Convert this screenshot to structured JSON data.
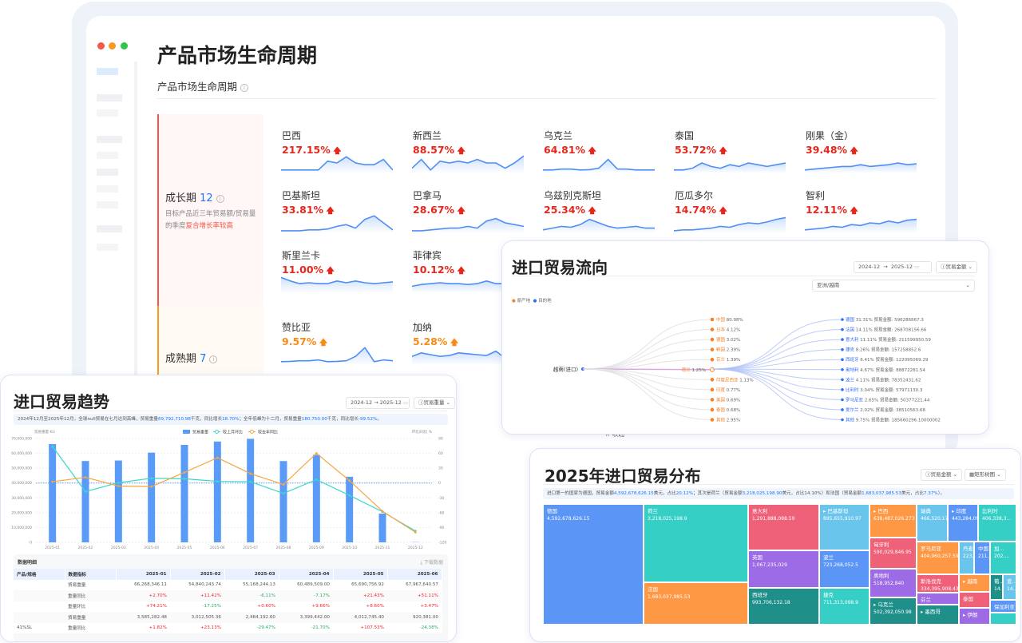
{
  "main": {
    "title": "产品市场生命周期",
    "subtitle": "产品市场生命周期",
    "collapse_label": "收起",
    "growth": {
      "label": "成长期",
      "count": "12",
      "desc_prefix": "目标产品近三年贸易额/贸易量的季度",
      "desc_highlight": "复合增长率较高",
      "color": "#f5574b",
      "items": [
        {
          "name": "巴西",
          "pct": "217.15%"
        },
        {
          "name": "新西兰",
          "pct": "88.57%"
        },
        {
          "name": "乌克兰",
          "pct": "64.81%"
        },
        {
          "name": "泰国",
          "pct": "53.72%"
        },
        {
          "name": "刚果（金）",
          "pct": "39.48%"
        },
        {
          "name": "巴基斯坦",
          "pct": "33.81%"
        },
        {
          "name": "巴拿马",
          "pct": "28.67%"
        },
        {
          "name": "乌兹别克斯坦",
          "pct": "25.34%"
        },
        {
          "name": "厄瓜多尔",
          "pct": "14.74%"
        },
        {
          "name": "智利",
          "pct": "12.11%"
        },
        {
          "name": "斯里兰卡",
          "pct": "11.00%"
        },
        {
          "name": "菲律宾",
          "pct": "10.12%"
        }
      ]
    },
    "mature": {
      "label": "成熟期",
      "count": "7",
      "color": "#fa9a1e",
      "items": [
        {
          "name": "赞比亚",
          "pct": "9.57%"
        },
        {
          "name": "加纳",
          "pct": "5.28%"
        }
      ]
    }
  },
  "trend": {
    "title": "进口贸易趋势",
    "date_start": "2024-12",
    "date_end": "2025-12",
    "metric": "贸易重量",
    "summary": [
      "2024年12月至2025年12月，全球null贸易在七月达到高峰，贸易重量",
      "69,792,710.98",
      "千克，同比增长",
      "18.70%",
      "；全年低峰为十二月，贸易重量",
      "180,750.00",
      "千克，同比增长",
      "-99.52%",
      "。"
    ],
    "table_title": "数据明细",
    "download_label": "下载数据",
    "table": {
      "headers": [
        "产品/规格",
        "数据指标",
        "2025-01",
        "2025-02",
        "2025-03",
        "2025-04",
        "2025-05",
        "2025-06"
      ],
      "rows": [
        [
          "",
          "贸易重量",
          "66,268,346.11",
          "54,840,243.74",
          "55,168,244.13",
          "60,489,509.00",
          "65,690,756.92",
          "67,967,640.57"
        ],
        [
          "",
          "重量同比",
          "+2.70%",
          "+11.42%",
          "-6.11%",
          "-7.17%",
          "+21.43%",
          "+51.11%"
        ],
        [
          "",
          "重量环比",
          "+74.21%",
          "-17.25%",
          "+0.60%",
          "+9.66%",
          "+8.60%",
          "+3.47%"
        ],
        [
          "",
          "贸易重量",
          "3,585,282.48",
          "3,012,505.36",
          "2,484,192.60",
          "3,399,442.00",
          "4,012,745.40",
          "920,381.00"
        ],
        [
          "41%SL",
          "重量同比",
          "+1.82%",
          "+23.13%",
          "-29.47%",
          "-21.70%",
          "+107.53%",
          "-24.38%"
        ]
      ]
    }
  },
  "chart_data": {
    "type": "bar",
    "xlabel": "",
    "ylabel": "贸易重量 KG",
    "y2label": "环比/同比 %",
    "categories": [
      "2025-01",
      "2025-02",
      "2025-03",
      "2025-04",
      "2025-05",
      "2025-06",
      "2025-07",
      "2025-08",
      "2025-09",
      "2025-10",
      "2025-11",
      "2025-12"
    ],
    "ylim": [
      0,
      70000000
    ],
    "yticks": [
      "0",
      "10,000,000",
      "20,000,000",
      "30,000,000",
      "40,000,000",
      "50,000,000",
      "60,000,000",
      "70,000,000"
    ],
    "y2lim": [
      -120,
      90
    ],
    "y2ticks": [
      "-120",
      "-90",
      "-60",
      "-30",
      "0",
      "30",
      "60",
      "90"
    ],
    "grid": true,
    "legend": "top",
    "series": [
      {
        "name": "贸易重量",
        "type": "bar",
        "color": "#5b9bf8",
        "values": [
          66268346,
          54840244,
          55168244,
          60489509,
          65690757,
          67967641,
          69792711,
          54800000,
          59000000,
          44200000,
          19400000,
          180750
        ]
      },
      {
        "name": "较上月环比",
        "type": "line",
        "color": "#3ad8c8",
        "values": [
          74.21,
          -17.25,
          0.6,
          9.66,
          8.6,
          3.47,
          2.7,
          -21,
          7,
          -25,
          -58,
          -97
        ]
      },
      {
        "name": "较去年同比",
        "type": "line",
        "color": "#f5a742",
        "values": [
          2.7,
          11.42,
          -6.11,
          -7.17,
          21.43,
          51.11,
          19,
          -3,
          60,
          5,
          -57,
          -99.52
        ]
      }
    ]
  },
  "flow": {
    "title": "进口贸易流向",
    "date_start": "2024-12",
    "date_end": "2025-12",
    "metric": "贸易金额",
    "region": "亚洲/越南",
    "legend_origin": "原产地",
    "legend_dest": "目的地",
    "source": "越南(进口)",
    "origin_color": "#f5822a",
    "dest_color": "#2f6ef6",
    "origins": [
      {
        "name": "中国",
        "pct": "80.98%"
      },
      {
        "name": "日本",
        "pct": "4.12%"
      },
      {
        "name": "德国",
        "pct": "3.02%"
      },
      {
        "name": "韩国",
        "pct": "2.39%"
      },
      {
        "name": "芬兰",
        "pct": "1.39%"
      },
      {
        "name": "荷兰",
        "pct": "1.25%"
      },
      {
        "name": "印度尼西亚",
        "pct": "1.13%"
      },
      {
        "name": "印度",
        "pct": "0.77%"
      },
      {
        "name": "美国",
        "pct": "0.69%"
      },
      {
        "name": "泰国",
        "pct": "0.68%"
      },
      {
        "name": "其他",
        "pct": "2.95%"
      }
    ],
    "amount_label": "贸易金额:",
    "dests": [
      {
        "name": "德国",
        "pct": "31.31%",
        "amount": "596286667.3"
      },
      {
        "name": "法国",
        "pct": "14.11%",
        "amount": "268708156.66"
      },
      {
        "name": "意大利",
        "pct": "11.11%",
        "amount": "211599950.59"
      },
      {
        "name": "捷克",
        "pct": "8.26%",
        "amount": "157258852.6"
      },
      {
        "name": "西班牙",
        "pct": "6.41%",
        "amount": "122095069.29"
      },
      {
        "name": "奥地利",
        "pct": "4.67%",
        "amount": "88872281.54"
      },
      {
        "name": "波兰",
        "pct": "4.11%",
        "amount": "78352431.62"
      },
      {
        "name": "比利时",
        "pct": "3.04%",
        "amount": "57971130.3"
      },
      {
        "name": "罗马尼亚",
        "pct": "2.65%",
        "amount": "50377221.44"
      },
      {
        "name": "爱尔兰",
        "pct": "2.02%",
        "amount": "38510563.68"
      },
      {
        "name": "其他",
        "pct": "9.75%",
        "amount": "185660296.10000002"
      }
    ]
  },
  "treemap": {
    "title": "2025年进口贸易分布",
    "metric": "贸易金额",
    "view": "矩形树图",
    "summary": [
      "进口第一的国家为德国，贸易金额",
      "4,592,678,626.15",
      "美元，占比",
      "20.12%",
      "；其次是荷兰（贸易金额",
      "3,218,025,198.90",
      "美元，占比14.10%）和法国（贸易金额",
      "1,683,037,985.53",
      "美元，占比",
      "7.37%",
      "）。"
    ],
    "cells": [
      {
        "name": "德国",
        "value": "4,592,678,626.15",
        "color": "#5b96f7"
      },
      {
        "name": "荷兰",
        "value": "3,218,025,198.9",
        "color": "#36cfc6"
      },
      {
        "name": "法国",
        "value": "1,683,037,985.53",
        "color": "#ff9845"
      },
      {
        "name": "意大利",
        "value": "1,291,888,088.59",
        "color": "#ef6079"
      },
      {
        "name": "英国",
        "value": "1,067,235,029",
        "color": "#9d6be6"
      },
      {
        "name": "西班牙",
        "value": "993,706,132.18",
        "color": "#1e8f89"
      },
      {
        "name": "▸ 巴基斯坦",
        "value": "895,655,910.97",
        "color": "#6ac5ec"
      },
      {
        "name": "波兰",
        "value": "723,268,052.5",
        "color": "#5b96f7"
      },
      {
        "name": "捷克",
        "value": "711,313,098.9",
        "color": "#36cfc6"
      },
      {
        "name": "▸ 巴西",
        "value": "638,487,026.273",
        "color": "#ff9845"
      },
      {
        "name": "匈牙利",
        "value": "590,029,846.95",
        "color": "#ef6079"
      },
      {
        "name": "奥地利",
        "value": "518,952,840",
        "color": "#9d6be6"
      },
      {
        "name": "▸ 乌克兰",
        "value": "502,392,050.98",
        "color": "#1e8f89"
      },
      {
        "name": "瑞典",
        "value": "466,520,177...",
        "color": "#6ac5ec"
      },
      {
        "name": "▸ 印度",
        "value": "443,284,09...",
        "color": "#5b96f7"
      },
      {
        "name": "比利时",
        "value": "406,338,3...",
        "color": "#36cfc6"
      },
      {
        "name": "罗马尼亚",
        "value": "404,960,257.59",
        "color": "#ff9845"
      },
      {
        "name": "丹麦",
        "value": "223,...",
        "color": "#6ac5ec"
      },
      {
        "name": "中国",
        "value": "211,...",
        "color": "#5b96f7"
      },
      {
        "name": "加...",
        "value": "202,...",
        "color": "#36cfc6"
      },
      {
        "name": "斯洛伐克",
        "value": "334,395,908.43",
        "color": "#ef6079"
      },
      {
        "name": "芬兰",
        "value": "",
        "color": "#9d6be6"
      },
      {
        "name": "▸ 墨西哥",
        "value": "",
        "color": "#1e8f89"
      },
      {
        "name": "▸ 越南",
        "value": "",
        "color": "#ff9845"
      },
      {
        "name": "泰国",
        "value": "",
        "color": "#ef6079"
      },
      {
        "name": "▸ 伊朗",
        "value": "",
        "color": "#9d6be6"
      },
      {
        "name": "葡...",
        "value": "14...",
        "color": "#1e8f89"
      },
      {
        "name": "爱...",
        "value": "14...",
        "color": "#6ac5ec"
      },
      {
        "name": "保加利亚",
        "value": "",
        "color": "#5b96f7"
      },
      {
        "name": "",
        "value": "",
        "color": "#36cfc6"
      }
    ]
  }
}
